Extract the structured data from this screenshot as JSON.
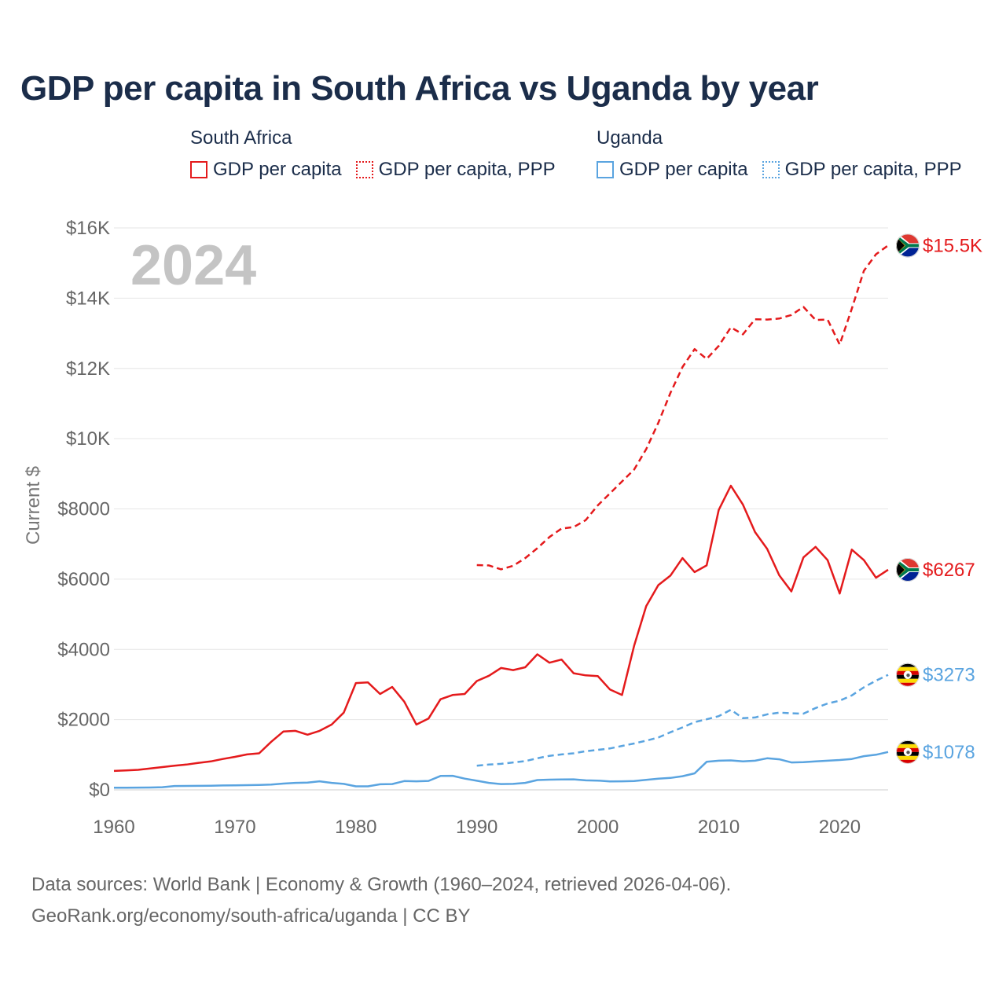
{
  "page": {
    "title": "GDP per capita in South Africa vs Uganda by year",
    "footer_line1": "Data sources: World Bank | Economy & Growth (1960–2024, retrieved 2026-04-06).",
    "footer_line2": "GeoRank.org/economy/south-africa/uganda | CC BY"
  },
  "legend": {
    "groups": [
      {
        "title": "South Africa",
        "items": [
          "GDP per capita",
          "GDP per capita, PPP"
        ]
      },
      {
        "title": "Uganda",
        "items": [
          "GDP per capita",
          "GDP per capita, PPP"
        ]
      }
    ]
  },
  "chart_data": {
    "type": "line",
    "title": "GDP per capita in South Africa vs Uganda by year",
    "year_label": "2024",
    "xlabel": "",
    "ylabel": "Current $",
    "xlim": [
      1960,
      2024
    ],
    "ylim": [
      0,
      16000
    ],
    "x_ticks": [
      1960,
      1970,
      1980,
      1990,
      2000,
      2010,
      2020
    ],
    "x_tick_labels": [
      "1960",
      "1970",
      "1980",
      "1990",
      "2000",
      "2010",
      "2020"
    ],
    "y_ticks": [
      0,
      2000,
      4000,
      6000,
      8000,
      10000,
      12000,
      14000,
      16000
    ],
    "y_tick_labels": [
      "$0",
      "$2000",
      "$4000",
      "$6000",
      "$8000",
      "$10K",
      "$12K",
      "$14K",
      "$16K"
    ],
    "grid": true,
    "series": [
      {
        "name": "South Africa GDP per capita",
        "country": "South Africa",
        "style": "solid",
        "color": "#e41a1c",
        "end_label": "$6267",
        "x": [
          1960,
          1961,
          1962,
          1963,
          1964,
          1965,
          1966,
          1967,
          1968,
          1969,
          1970,
          1971,
          1972,
          1973,
          1974,
          1975,
          1976,
          1977,
          1978,
          1979,
          1980,
          1981,
          1982,
          1983,
          1984,
          1985,
          1986,
          1987,
          1988,
          1989,
          1990,
          1991,
          1992,
          1993,
          1994,
          1995,
          1996,
          1997,
          1998,
          1999,
          2000,
          2001,
          2002,
          2003,
          2004,
          2005,
          2006,
          2007,
          2008,
          2009,
          2010,
          2011,
          2012,
          2013,
          2014,
          2015,
          2016,
          2017,
          2018,
          2019,
          2020,
          2021,
          2022,
          2023,
          2024
        ],
        "values": [
          540,
          555,
          570,
          610,
          650,
          690,
          720,
          770,
          810,
          880,
          940,
          1010,
          1040,
          1370,
          1660,
          1680,
          1570,
          1680,
          1860,
          2200,
          3040,
          3060,
          2730,
          2930,
          2510,
          1860,
          2030,
          2580,
          2700,
          2730,
          3100,
          3250,
          3470,
          3410,
          3490,
          3860,
          3620,
          3710,
          3320,
          3260,
          3240,
          2860,
          2700,
          4100,
          5230,
          5830,
          6100,
          6600,
          6200,
          6390,
          7970,
          8660,
          8120,
          7340,
          6860,
          6110,
          5650,
          6620,
          6920,
          6540,
          5590,
          6840,
          6540,
          6040,
          6267
        ]
      },
      {
        "name": "South Africa GDP per capita, PPP",
        "country": "South Africa",
        "style": "dashed",
        "color": "#e41a1c",
        "end_label": "$15.5K",
        "x": [
          1990,
          1991,
          1992,
          1993,
          1994,
          1995,
          1996,
          1997,
          1998,
          1999,
          2000,
          2001,
          2002,
          2003,
          2004,
          2005,
          2006,
          2007,
          2008,
          2009,
          2010,
          2011,
          2012,
          2013,
          2014,
          2015,
          2016,
          2017,
          2018,
          2019,
          2020,
          2021,
          2022,
          2023,
          2024
        ],
        "values": [
          6400,
          6390,
          6280,
          6380,
          6600,
          6880,
          7200,
          7440,
          7480,
          7680,
          8100,
          8440,
          8780,
          9120,
          9700,
          10450,
          11300,
          12040,
          12550,
          12270,
          12640,
          13170,
          12970,
          13400,
          13390,
          13420,
          13520,
          13750,
          13380,
          13390,
          12680,
          13700,
          14780,
          15250,
          15500
        ]
      },
      {
        "name": "Uganda GDP per capita",
        "country": "Uganda",
        "style": "solid",
        "color": "#5aa4e0",
        "end_label": "$1078",
        "x": [
          1960,
          1961,
          1962,
          1963,
          1964,
          1965,
          1966,
          1967,
          1968,
          1969,
          1970,
          1971,
          1972,
          1973,
          1974,
          1975,
          1976,
          1977,
          1978,
          1979,
          1980,
          1981,
          1982,
          1983,
          1984,
          1985,
          1986,
          1987,
          1988,
          1989,
          1990,
          1991,
          1992,
          1993,
          1994,
          1995,
          1996,
          1997,
          1998,
          1999,
          2000,
          2001,
          2002,
          2003,
          2004,
          2005,
          2006,
          2007,
          2008,
          2009,
          2010,
          2011,
          2012,
          2013,
          2014,
          2015,
          2016,
          2017,
          2018,
          2019,
          2020,
          2021,
          2022,
          2023,
          2024
        ],
        "values": [
          60,
          62,
          65,
          68,
          75,
          110,
          112,
          115,
          118,
          125,
          130,
          135,
          142,
          150,
          180,
          200,
          205,
          245,
          200,
          170,
          100,
          100,
          160,
          165,
          250,
          245,
          255,
          395,
          400,
          320,
          260,
          200,
          165,
          170,
          200,
          280,
          290,
          295,
          300,
          270,
          265,
          240,
          245,
          250,
          285,
          320,
          340,
          390,
          470,
          800,
          830,
          840,
          810,
          830,
          900,
          870,
          780,
          790,
          810,
          830,
          850,
          880,
          960,
          1000,
          1078
        ]
      },
      {
        "name": "Uganda GDP per capita, PPP",
        "country": "Uganda",
        "style": "dashed",
        "color": "#5aa4e0",
        "end_label": "$3273",
        "x": [
          1990,
          1991,
          1992,
          1993,
          1994,
          1995,
          1996,
          1997,
          1998,
          1999,
          2000,
          2001,
          2002,
          2003,
          2004,
          2005,
          2006,
          2007,
          2008,
          2009,
          2010,
          2011,
          2012,
          2013,
          2014,
          2015,
          2016,
          2017,
          2018,
          2019,
          2020,
          2021,
          2022,
          2023,
          2024
        ],
        "values": [
          690,
          720,
          740,
          780,
          820,
          900,
          970,
          1010,
          1040,
          1100,
          1140,
          1180,
          1250,
          1320,
          1400,
          1490,
          1640,
          1780,
          1930,
          2010,
          2100,
          2280,
          2040,
          2060,
          2150,
          2200,
          2180,
          2170,
          2330,
          2460,
          2540,
          2690,
          2920,
          3110,
          3273
        ]
      }
    ]
  }
}
